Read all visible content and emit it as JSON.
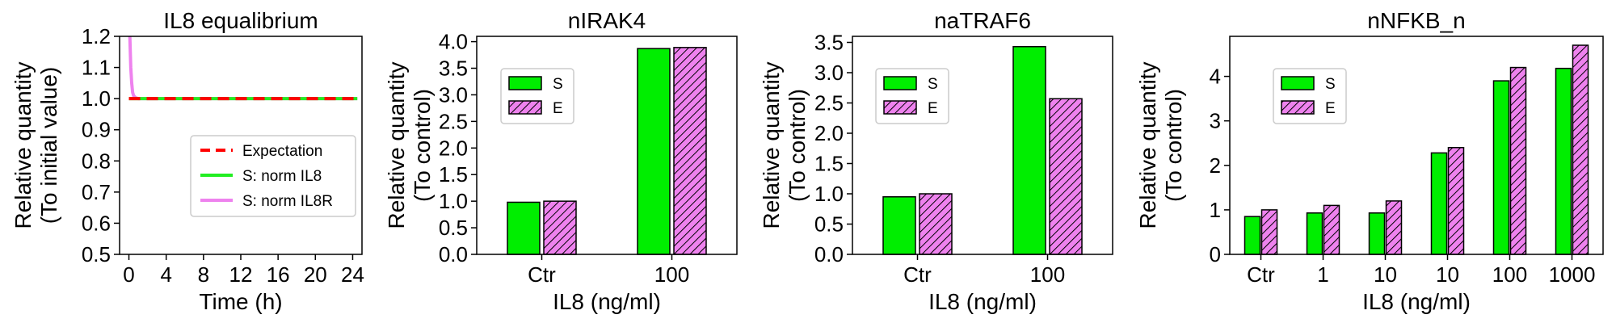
{
  "colors": {
    "expectation": "#ff0000",
    "norm_il8": "#22ee22",
    "norm_il8r": "#ee82ee",
    "bar_s": "#00ee00",
    "bar_e": "#ee82ee"
  },
  "chart_data": [
    {
      "type": "line",
      "title": "IL8 equalibrium",
      "xlabel": "Time (h)",
      "ylabel": [
        "Relative quantity",
        "(To initial value)"
      ],
      "xlim": [
        -1,
        25
      ],
      "ylim": [
        0.5,
        1.2
      ],
      "xticks": [
        0,
        4,
        8,
        12,
        16,
        20,
        24
      ],
      "yticks": [
        0.5,
        0.6,
        0.7,
        0.8,
        0.9,
        1.0,
        1.1,
        1.2
      ],
      "ytick_labels": [
        "0.5",
        "0.6",
        "0.7",
        "0.8",
        "0.9",
        "1.0",
        "1.1",
        "1.2"
      ],
      "legend_position": "center-right",
      "series": [
        {
          "name": "Expectation",
          "style": "dashed",
          "color": "#ff0000",
          "x": [
            0,
            24.5
          ],
          "y": [
            1.0,
            1.0
          ]
        },
        {
          "name": "S: norm IL8",
          "style": "solid",
          "color": "#22ee22",
          "x": [
            0,
            24.5
          ],
          "y": [
            1.0,
            1.0
          ]
        },
        {
          "name": "S: norm IL8R",
          "style": "solid",
          "color": "#ee82ee",
          "x": [
            0,
            0.1,
            0.2,
            0.3,
            0.4,
            0.5,
            0.7,
            1.0,
            24.5
          ],
          "y": [
            1.35,
            1.2,
            1.1,
            1.05,
            1.02,
            1.01,
            1.003,
            1.0,
            1.0
          ]
        }
      ]
    },
    {
      "type": "bar",
      "title": "nIRAK4",
      "xlabel": "IL8 (ng/ml)",
      "ylabel": [
        "Relative quantity",
        "(To control)"
      ],
      "categories": [
        "Ctr",
        "100"
      ],
      "ylim": [
        0,
        4.1
      ],
      "yticks": [
        0,
        0.5,
        1.0,
        1.5,
        2.0,
        2.5,
        3.0,
        3.5,
        4.0
      ],
      "ytick_labels": [
        "0.0",
        "0.5",
        "1.0",
        "1.5",
        "2.0",
        "2.5",
        "3.0",
        "3.5",
        "4.0"
      ],
      "legend_position": "upper-left",
      "series": [
        {
          "name": "S",
          "values": [
            0.98,
            3.87
          ]
        },
        {
          "name": "E",
          "values": [
            1.0,
            3.89
          ]
        }
      ]
    },
    {
      "type": "bar",
      "title": "naTRAF6",
      "xlabel": "IL8 (ng/ml)",
      "ylabel": [
        "Relative quantity",
        "(To control)"
      ],
      "categories": [
        "Ctr",
        "100"
      ],
      "ylim": [
        0,
        3.6
      ],
      "yticks": [
        0,
        0.5,
        1.0,
        1.5,
        2.0,
        2.5,
        3.0,
        3.5
      ],
      "ytick_labels": [
        "0.0",
        "0.5",
        "1.0",
        "1.5",
        "2.0",
        "2.5",
        "3.0",
        "3.5"
      ],
      "legend_position": "upper-left",
      "series": [
        {
          "name": "S",
          "values": [
            0.95,
            3.43
          ]
        },
        {
          "name": "E",
          "values": [
            1.0,
            2.57
          ]
        }
      ]
    },
    {
      "type": "bar",
      "title": "nNFKB_n",
      "xlabel": "IL8 (ng/ml)",
      "ylabel": [
        "Relative quantity",
        "(To control)"
      ],
      "categories": [
        "Ctr",
        "1",
        "10",
        "10",
        "100",
        "1000"
      ],
      "ylim": [
        0,
        4.9
      ],
      "yticks": [
        0,
        1,
        2,
        3,
        4
      ],
      "ytick_labels": [
        "0",
        "1",
        "2",
        "3",
        "4"
      ],
      "legend_position": "upper-left",
      "series": [
        {
          "name": "S",
          "values": [
            0.85,
            0.93,
            0.93,
            2.28,
            3.9,
            4.18
          ]
        },
        {
          "name": "E",
          "values": [
            1.0,
            1.1,
            1.2,
            2.4,
            4.2,
            4.7
          ]
        }
      ]
    }
  ]
}
